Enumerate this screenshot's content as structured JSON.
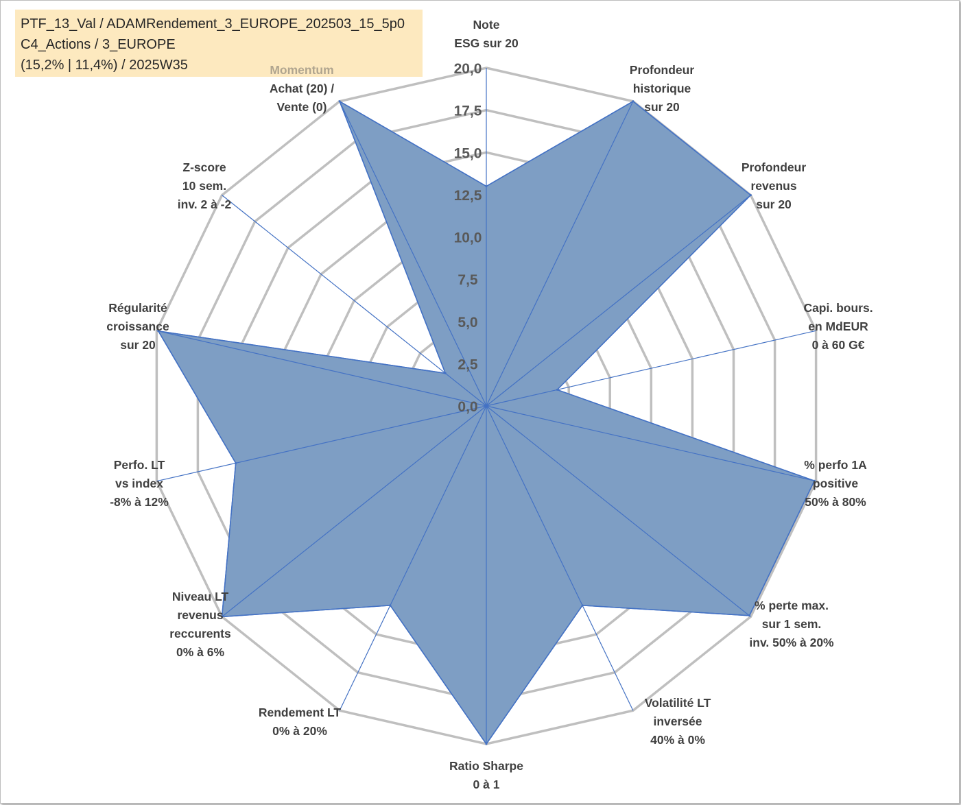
{
  "info_box": {
    "line1": "PTF_13_Val / ADAMRendement_3_EUROPE_202503_15_5p0",
    "line2": "C4_Actions / 3_EUROPE",
    "line3": "(15,2% | 11,4%) / 2025W35"
  },
  "chart_data": {
    "type": "radar",
    "title": "",
    "rmin": 0,
    "rmax": 20,
    "tick_step": 2.5,
    "tick_labels": [
      "0,0",
      "2,5",
      "5,0",
      "7,5",
      "10,0",
      "12,5",
      "15,0",
      "17,5",
      "20,0"
    ],
    "axes": [
      {
        "label": [
          "Note",
          "ESG sur 20"
        ],
        "value": 13.0
      },
      {
        "label": [
          "Profondeur",
          "historique",
          "sur 20"
        ],
        "value": 20.0
      },
      {
        "label": [
          "Profondeur",
          "revenus",
          "sur 20"
        ],
        "value": 20.0
      },
      {
        "label": [
          "Capi. bours.",
          "en MdEUR",
          "0 à 60 G€"
        ],
        "value": 4.3
      },
      {
        "label": [
          "% perfo 1A",
          "positive",
          "50% à 80%"
        ],
        "value": 19.9
      },
      {
        "label": [
          "% perte max.",
          "sur 1 sem.",
          "inv. 50% à 20%"
        ],
        "value": 19.9
      },
      {
        "label": [
          "Volatilité LT",
          "inversée",
          "40% à 0%"
        ],
        "value": 13.1
      },
      {
        "label": [
          "Ratio Sharpe",
          "0 à 1"
        ],
        "value": 20.0
      },
      {
        "label": [
          "Rendement LT",
          "0% à 20%"
        ],
        "value": 13.1
      },
      {
        "label": [
          "Niveau LT",
          "revenus",
          "reccurents",
          "0% à 6%"
        ],
        "value": 20.0
      },
      {
        "label": [
          "Perfo. LT",
          "vs index",
          "-8% à 12%"
        ],
        "value": 15.2
      },
      {
        "label": [
          "Régularité",
          "croissance",
          "sur 20"
        ],
        "value": 19.9
      },
      {
        "label": [
          "Z-score",
          "10 sem.",
          "inv. 2 à -2"
        ],
        "value": 3.1
      },
      {
        "label": [
          "Momentum",
          "Achat (20) /",
          "Vente (0)"
        ],
        "value": 20.0,
        "first_line_muted": true
      }
    ],
    "colors": {
      "fill": "#7e9ec4",
      "stroke": "#4472c4",
      "grid": "#bfbfbf",
      "spoke": "#4472c4",
      "label": "#404040",
      "tick": "#595959",
      "muted": "#b0a58f"
    }
  }
}
